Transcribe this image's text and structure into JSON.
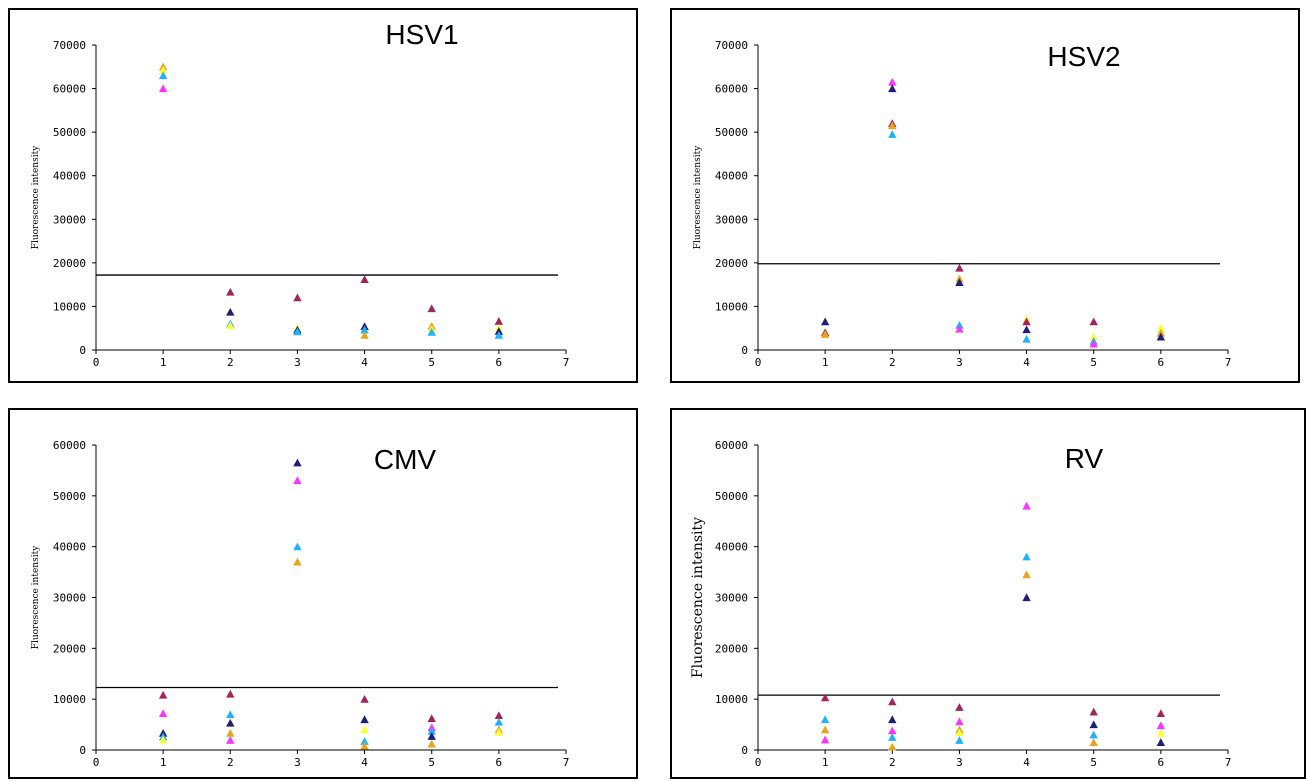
{
  "colors": {
    "navy": "#1f1f7a",
    "maroon": "#a3245a",
    "magenta": "#ff33ff",
    "cyan": "#1fb3ff",
    "orange": "#e7a51e",
    "yellow": "#ffff33",
    "threshold": "#000000"
  },
  "chart_data": [
    {
      "type": "scatter",
      "title": "HSV1",
      "ylabel": "Fluorescence intensity",
      "xlabel": "",
      "xlim": [
        0,
        7
      ],
      "ylim": [
        0,
        70000
      ],
      "x_ticks": [
        "0",
        "1",
        "2",
        "3",
        "4",
        "5",
        "6",
        "7"
      ],
      "y_ticks": [
        "0",
        "10000",
        "20000",
        "30000",
        "40000",
        "50000",
        "60000",
        "70000"
      ],
      "threshold": 17200,
      "grid": false,
      "points": [
        {
          "x": 1,
          "y": 65000,
          "color": "orange"
        },
        {
          "x": 1,
          "y": 64200,
          "color": "yellow"
        },
        {
          "x": 1,
          "y": 63000,
          "color": "cyan"
        },
        {
          "x": 1,
          "y": 60000,
          "color": "magenta"
        },
        {
          "x": 2,
          "y": 13300,
          "color": "maroon"
        },
        {
          "x": 2,
          "y": 8700,
          "color": "navy"
        },
        {
          "x": 2,
          "y": 6000,
          "color": "cyan"
        },
        {
          "x": 2,
          "y": 5600,
          "color": "yellow"
        },
        {
          "x": 3,
          "y": 12000,
          "color": "maroon"
        },
        {
          "x": 3,
          "y": 5000,
          "color": "yellow"
        },
        {
          "x": 3,
          "y": 4600,
          "color": "navy"
        },
        {
          "x": 3,
          "y": 4200,
          "color": "cyan"
        },
        {
          "x": 4,
          "y": 16200,
          "color": "maroon"
        },
        {
          "x": 4,
          "y": 5400,
          "color": "navy"
        },
        {
          "x": 4,
          "y": 4600,
          "color": "cyan"
        },
        {
          "x": 4,
          "y": 3400,
          "color": "orange"
        },
        {
          "x": 5,
          "y": 9500,
          "color": "maroon"
        },
        {
          "x": 5,
          "y": 5500,
          "color": "orange"
        },
        {
          "x": 5,
          "y": 4800,
          "color": "yellow"
        },
        {
          "x": 5,
          "y": 4100,
          "color": "cyan"
        },
        {
          "x": 6,
          "y": 6600,
          "color": "maroon"
        },
        {
          "x": 6,
          "y": 5000,
          "color": "yellow"
        },
        {
          "x": 6,
          "y": 4300,
          "color": "navy"
        },
        {
          "x": 6,
          "y": 3400,
          "color": "cyan"
        }
      ]
    },
    {
      "type": "scatter",
      "title": "HSV2",
      "ylabel": "Fluorescence intensity",
      "xlabel": "",
      "xlim": [
        0,
        7
      ],
      "ylim": [
        0,
        70000
      ],
      "x_ticks": [
        "0",
        "1",
        "2",
        "3",
        "4",
        "5",
        "6",
        "7"
      ],
      "y_ticks": [
        "0",
        "10000",
        "20000",
        "30000",
        "40000",
        "50000",
        "60000",
        "70000"
      ],
      "threshold": 19800,
      "grid": false,
      "points": [
        {
          "x": 1,
          "y": 6500,
          "color": "navy"
        },
        {
          "x": 1,
          "y": 4000,
          "color": "maroon"
        },
        {
          "x": 1,
          "y": 3600,
          "color": "orange"
        },
        {
          "x": 2,
          "y": 61500,
          "color": "magenta"
        },
        {
          "x": 2,
          "y": 60000,
          "color": "navy"
        },
        {
          "x": 2,
          "y": 52000,
          "color": "maroon"
        },
        {
          "x": 2,
          "y": 51500,
          "color": "orange"
        },
        {
          "x": 2,
          "y": 49500,
          "color": "cyan"
        },
        {
          "x": 3,
          "y": 18800,
          "color": "maroon"
        },
        {
          "x": 3,
          "y": 16300,
          "color": "orange"
        },
        {
          "x": 3,
          "y": 15500,
          "color": "navy"
        },
        {
          "x": 3,
          "y": 5700,
          "color": "cyan"
        },
        {
          "x": 3,
          "y": 4800,
          "color": "magenta"
        },
        {
          "x": 4,
          "y": 7000,
          "color": "yellow"
        },
        {
          "x": 4,
          "y": 6500,
          "color": "maroon"
        },
        {
          "x": 4,
          "y": 4700,
          "color": "navy"
        },
        {
          "x": 4,
          "y": 2500,
          "color": "cyan"
        },
        {
          "x": 5,
          "y": 6500,
          "color": "maroon"
        },
        {
          "x": 5,
          "y": 3000,
          "color": "yellow"
        },
        {
          "x": 5,
          "y": 2000,
          "color": "cyan"
        },
        {
          "x": 5,
          "y": 1400,
          "color": "magenta"
        },
        {
          "x": 6,
          "y": 5000,
          "color": "yellow"
        },
        {
          "x": 6,
          "y": 3900,
          "color": "orange"
        },
        {
          "x": 6,
          "y": 3000,
          "color": "navy"
        }
      ]
    },
    {
      "type": "scatter",
      "title": "CMV",
      "ylabel": "Fluorescence intensity",
      "xlabel": "",
      "xlim": [
        0,
        7
      ],
      "ylim": [
        0,
        60000
      ],
      "x_ticks": [
        "0",
        "1",
        "2",
        "3",
        "4",
        "5",
        "6",
        "7"
      ],
      "y_ticks": [
        "0",
        "10000",
        "20000",
        "30000",
        "40000",
        "50000",
        "60000"
      ],
      "threshold": 12300,
      "grid": false,
      "points": [
        {
          "x": 1,
          "y": 10800,
          "color": "maroon"
        },
        {
          "x": 1,
          "y": 7200,
          "color": "magenta"
        },
        {
          "x": 1,
          "y": 3300,
          "color": "navy"
        },
        {
          "x": 1,
          "y": 2600,
          "color": "cyan"
        },
        {
          "x": 1,
          "y": 2000,
          "color": "yellow"
        },
        {
          "x": 2,
          "y": 11000,
          "color": "maroon"
        },
        {
          "x": 2,
          "y": 7000,
          "color": "cyan"
        },
        {
          "x": 2,
          "y": 5300,
          "color": "navy"
        },
        {
          "x": 2,
          "y": 3300,
          "color": "orange"
        },
        {
          "x": 2,
          "y": 1900,
          "color": "magenta"
        },
        {
          "x": 3,
          "y": 56500,
          "color": "navy"
        },
        {
          "x": 3,
          "y": 53000,
          "color": "magenta"
        },
        {
          "x": 3,
          "y": 40000,
          "color": "cyan"
        },
        {
          "x": 3,
          "y": 37000,
          "color": "orange"
        },
        {
          "x": 4,
          "y": 10000,
          "color": "maroon"
        },
        {
          "x": 4,
          "y": 6000,
          "color": "navy"
        },
        {
          "x": 4,
          "y": 4000,
          "color": "yellow"
        },
        {
          "x": 4,
          "y": 1700,
          "color": "cyan"
        },
        {
          "x": 4,
          "y": 800,
          "color": "orange"
        },
        {
          "x": 5,
          "y": 6200,
          "color": "maroon"
        },
        {
          "x": 5,
          "y": 4400,
          "color": "magenta"
        },
        {
          "x": 5,
          "y": 3700,
          "color": "cyan"
        },
        {
          "x": 5,
          "y": 2700,
          "color": "navy"
        },
        {
          "x": 5,
          "y": 1200,
          "color": "orange"
        },
        {
          "x": 6,
          "y": 6800,
          "color": "maroon"
        },
        {
          "x": 6,
          "y": 5500,
          "color": "cyan"
        },
        {
          "x": 6,
          "y": 4000,
          "color": "orange"
        },
        {
          "x": 6,
          "y": 3500,
          "color": "yellow"
        }
      ]
    },
    {
      "type": "scatter",
      "title": "RV",
      "ylabel": "Fluorescence intensity",
      "xlabel": "",
      "xlim": [
        0,
        7
      ],
      "ylim": [
        0,
        60000
      ],
      "x_ticks": [
        "0",
        "1",
        "2",
        "3",
        "4",
        "5",
        "6",
        "7"
      ],
      "y_ticks": [
        "0",
        "10000",
        "20000",
        "30000",
        "40000",
        "50000",
        "60000"
      ],
      "threshold": 10800,
      "grid": false,
      "points": [
        {
          "x": 1,
          "y": 10300,
          "color": "maroon"
        },
        {
          "x": 1,
          "y": 6000,
          "color": "cyan"
        },
        {
          "x": 1,
          "y": 4000,
          "color": "orange"
        },
        {
          "x": 1,
          "y": 2000,
          "color": "magenta"
        },
        {
          "x": 2,
          "y": 9500,
          "color": "maroon"
        },
        {
          "x": 2,
          "y": 6000,
          "color": "navy"
        },
        {
          "x": 2,
          "y": 3800,
          "color": "magenta"
        },
        {
          "x": 2,
          "y": 2500,
          "color": "cyan"
        },
        {
          "x": 2,
          "y": 600,
          "color": "orange"
        },
        {
          "x": 3,
          "y": 8400,
          "color": "maroon"
        },
        {
          "x": 3,
          "y": 5600,
          "color": "magenta"
        },
        {
          "x": 3,
          "y": 4000,
          "color": "orange"
        },
        {
          "x": 3,
          "y": 3400,
          "color": "yellow"
        },
        {
          "x": 3,
          "y": 1900,
          "color": "cyan"
        },
        {
          "x": 4,
          "y": 48000,
          "color": "magenta"
        },
        {
          "x": 4,
          "y": 38000,
          "color": "cyan"
        },
        {
          "x": 4,
          "y": 34500,
          "color": "orange"
        },
        {
          "x": 4,
          "y": 30000,
          "color": "navy"
        },
        {
          "x": 5,
          "y": 7500,
          "color": "maroon"
        },
        {
          "x": 5,
          "y": 5000,
          "color": "navy"
        },
        {
          "x": 5,
          "y": 3000,
          "color": "cyan"
        },
        {
          "x": 5,
          "y": 1500,
          "color": "orange"
        },
        {
          "x": 6,
          "y": 7200,
          "color": "maroon"
        },
        {
          "x": 6,
          "y": 4800,
          "color": "magenta"
        },
        {
          "x": 6,
          "y": 3300,
          "color": "yellow"
        },
        {
          "x": 6,
          "y": 1500,
          "color": "navy"
        }
      ]
    }
  ]
}
